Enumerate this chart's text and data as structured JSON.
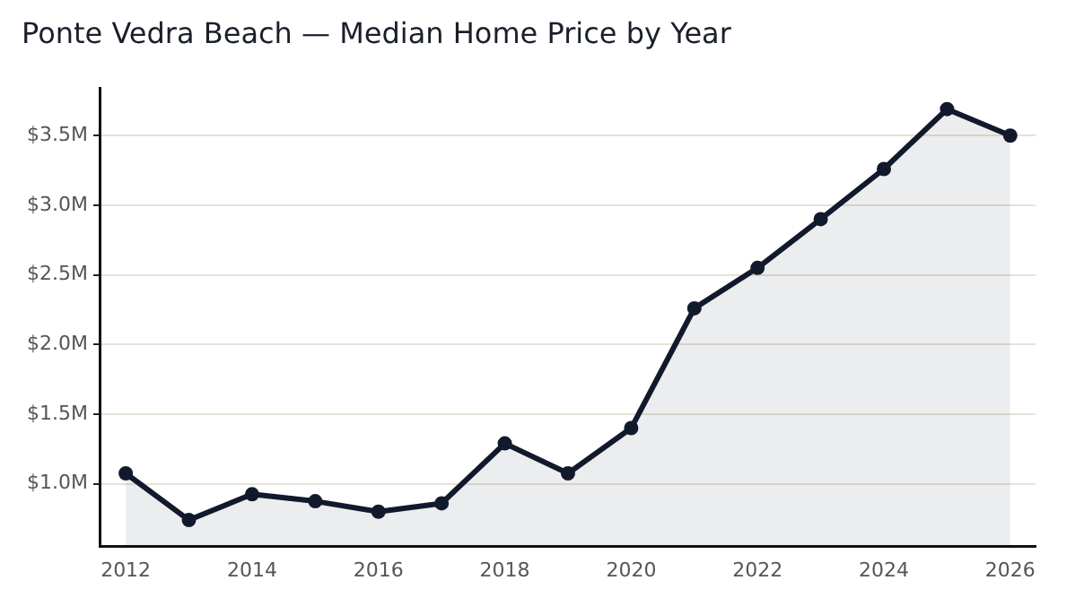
{
  "chart_data": {
    "type": "area",
    "title": "Ponte Vedra Beach — Median Home Price by Year",
    "x": [
      2012,
      2013,
      2014,
      2015,
      2016,
      2017,
      2018,
      2019,
      2020,
      2021,
      2022,
      2023,
      2024,
      2025,
      2026
    ],
    "series": [
      {
        "color": "#111a2c",
        "values": [
          1.075,
          0.74,
          0.925,
          0.875,
          0.8,
          0.86,
          1.29,
          1.075,
          1.4,
          2.26,
          2.55,
          2.9,
          3.26,
          3.69,
          3.5
        ]
      }
    ],
    "xlim": [
      2011.6,
      2026.4
    ],
    "xticks": [
      2012,
      2014,
      2016,
      2018,
      2020,
      2022,
      2024,
      2026
    ],
    "ylim": [
      0.55,
      3.84
    ],
    "yticks": [
      {
        "value": 1.0,
        "label": "$1.0M"
      },
      {
        "value": 1.5,
        "label": "$1.5M"
      },
      {
        "value": 2.0,
        "label": "$2.0M"
      },
      {
        "value": 2.5,
        "label": "$2.5M"
      },
      {
        "value": 3.0,
        "label": "$3.0M"
      },
      {
        "value": 3.5,
        "label": "$3.5M"
      }
    ],
    "grid": "y",
    "marker": "circle",
    "line_style": "solid",
    "legend": false
  }
}
